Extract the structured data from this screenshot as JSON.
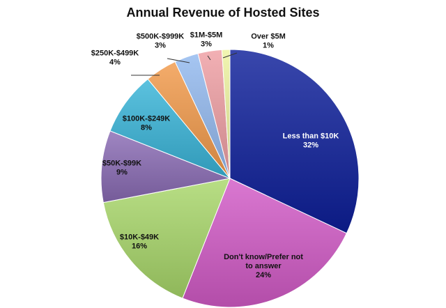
{
  "chart_data": {
    "type": "pie",
    "title": "Annual Revenue of Hosted Sites",
    "slices": [
      {
        "label_lines": [
          "Less than $10K"
        ],
        "value": 32,
        "display": "32%",
        "color": "#0d1f9a"
      },
      {
        "label_lines": [
          "Don't know/Prefer not",
          "to answer"
        ],
        "value": 24,
        "display": "24%",
        "color": "#d25ac7"
      },
      {
        "label_lines": [
          "$10K-$49K"
        ],
        "value": 16,
        "display": "16%",
        "color": "#a8d76a"
      },
      {
        "label_lines": [
          "$50K-$99K"
        ],
        "value": 9,
        "display": "9%",
        "color": "#8a6bb4"
      },
      {
        "label_lines": [
          "$100K-$249K"
        ],
        "value": 8,
        "display": "8%",
        "color": "#38b4d8"
      },
      {
        "label_lines": [
          "$250K-$499K"
        ],
        "value": 4,
        "display": "4%",
        "color": "#f29a4a"
      },
      {
        "label_lines": [
          "$500K-$999K"
        ],
        "value": 3,
        "display": "3%",
        "color": "#93b9ef"
      },
      {
        "label_lines": [
          "$1M-$5M"
        ],
        "value": 3,
        "display": "3%",
        "color": "#ef9fa3"
      },
      {
        "label_lines": [
          "Over $5M"
        ],
        "value": 1,
        "display": "1%",
        "color": "#eef3a0"
      }
    ]
  }
}
